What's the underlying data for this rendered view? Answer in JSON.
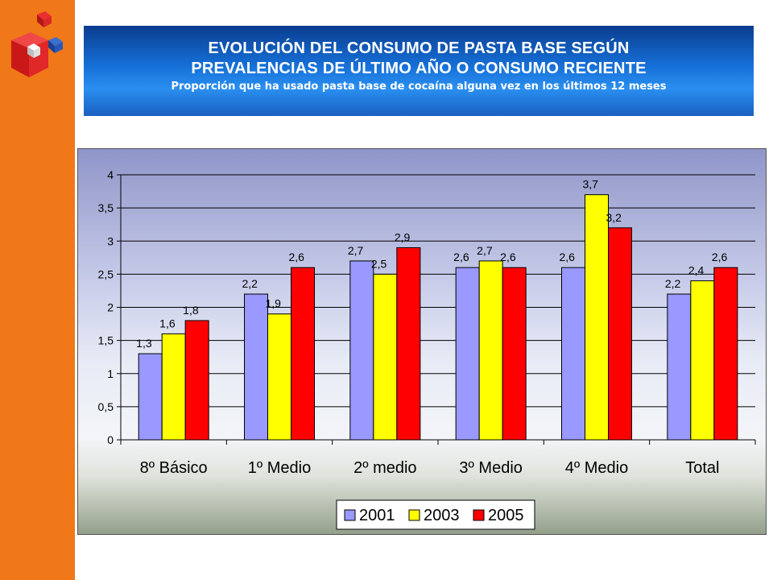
{
  "header": {
    "title_line1": "EVOLUCIÓN DEL CONSUMO DE PASTA BASE SEGÚN",
    "title_line2": "PREVALENCIAS DE ÚLTIMO AÑO O CONSUMO RECIENTE",
    "subtitle": "Proporción que ha usado pasta base de cocaína alguna vez en los últimos 12 meses"
  },
  "colors": {
    "sidebar": "#f07818",
    "series_2001": "#9999ff",
    "series_2003": "#ffff00",
    "series_2005": "#ff0000"
  },
  "chart_data": {
    "type": "bar",
    "categories": [
      "8º Básico",
      "1º Medio",
      "2º medio",
      "3º Medio",
      "4º Medio",
      "Total"
    ],
    "series": [
      {
        "name": "2001",
        "values": [
          1.3,
          2.2,
          2.7,
          2.6,
          2.6,
          2.2
        ],
        "labels": [
          "1,3",
          "2,2",
          "2,7",
          "2,6",
          "2,6",
          "2,2"
        ],
        "color": "#9999ff"
      },
      {
        "name": "2003",
        "values": [
          1.6,
          1.9,
          2.5,
          2.7,
          3.7,
          2.4
        ],
        "labels": [
          "1,6",
          "1,9",
          "2,5",
          "2,7",
          "3,7",
          "2,4"
        ],
        "color": "#ffff00"
      },
      {
        "name": "2005",
        "values": [
          1.8,
          2.6,
          2.9,
          2.6,
          3.2,
          2.6
        ],
        "labels": [
          "1,8",
          "2,6",
          "2,9",
          "2,6",
          "3,2",
          "2,6"
        ],
        "color": "#ff0000"
      }
    ],
    "ylim": [
      0,
      4
    ],
    "y_ticks": [
      0,
      0.5,
      1,
      1.5,
      2,
      2.5,
      3,
      3.5,
      4
    ],
    "y_tick_labels": [
      "0",
      "0,5",
      "1",
      "1,5",
      "2",
      "2,5",
      "3",
      "3,5",
      "4"
    ],
    "grid": true,
    "legend": "bottom-center"
  }
}
